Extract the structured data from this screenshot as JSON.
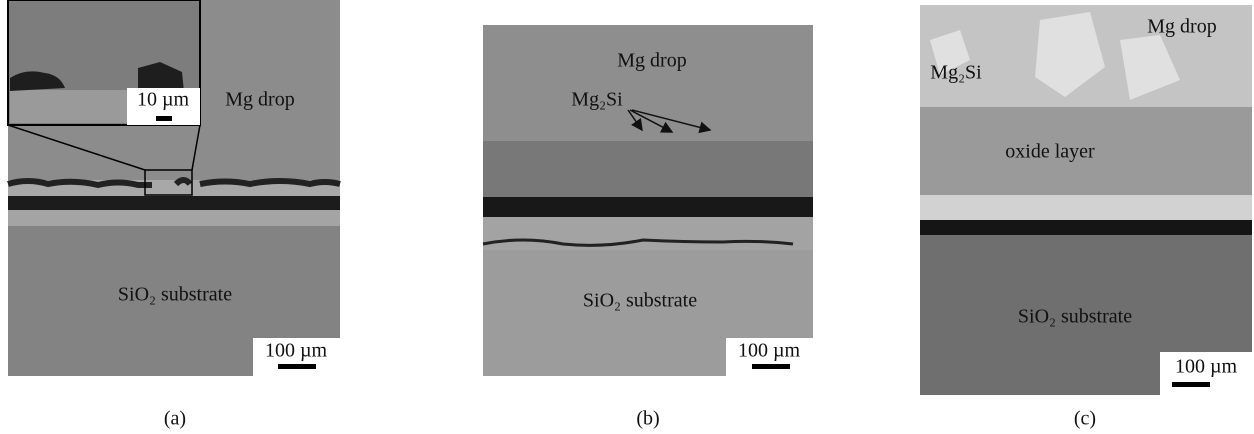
{
  "panels": [
    {
      "caption": "(a)",
      "labels": {
        "inset_scale": "10 µm",
        "drop": "Mg drop",
        "substrate": "SiO₂ substrate",
        "scale": "100 µm"
      }
    },
    {
      "caption": "(b)",
      "labels": {
        "drop": "Mg drop",
        "phase": "Mg₂Si",
        "substrate": "SiO₂ substrate",
        "scale": "100 µm"
      }
    },
    {
      "caption": "(c)",
      "labels": {
        "drop": "Mg drop",
        "phase": "Mg₂Si",
        "oxide": "oxide layer",
        "substrate": "SiO₂ substrate",
        "scale": "100 µm"
      }
    }
  ]
}
